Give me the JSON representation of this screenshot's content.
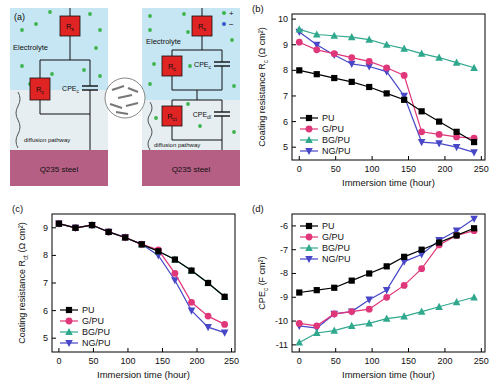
{
  "diagram": {
    "label": "(a)",
    "left": {
      "electrolyte": "Electrolyte",
      "pathway": "diffusion pathway",
      "substrate": "Q235 steel",
      "Rs": [
        "R",
        "s"
      ],
      "Rc": [
        "R",
        "c"
      ],
      "CPEc": [
        "CPE",
        "c"
      ]
    },
    "right": {
      "electrolyte": "Electrolyte",
      "pathway": "diffusion pathway",
      "substrate": "Q235 steel",
      "Rs": [
        "R",
        "s"
      ],
      "Rc": [
        "R",
        "c"
      ],
      "CPEc": [
        "CPE",
        "c"
      ],
      "Rct": [
        "R",
        "ct"
      ],
      "CPEdl": [
        "CPE",
        "dl"
      ],
      "ions": [
        "+",
        "−"
      ]
    }
  },
  "chart_data": [
    {
      "type": "line",
      "title": "(b)",
      "xlabel": "Immersion time (hour)",
      "ylabel": [
        "Coating resistance R",
        "c",
        " (Ω cm²)"
      ],
      "x": [
        0,
        24,
        48,
        72,
        96,
        120,
        144,
        168,
        192,
        216,
        240
      ],
      "xlim": [
        -10,
        255
      ],
      "xticks": [
        0,
        50,
        100,
        150,
        200,
        250
      ],
      "ylim": [
        4.5,
        10.2
      ],
      "yticks": [
        5,
        6,
        7,
        8,
        9,
        10
      ],
      "grid": false,
      "legend": "lower left",
      "series": [
        {
          "name": "PU",
          "color": "#000000",
          "marker": "square",
          "values": [
            8.0,
            7.85,
            7.7,
            7.55,
            7.35,
            7.1,
            6.85,
            6.4,
            6.0,
            5.6,
            5.2
          ]
        },
        {
          "name": "G/PU",
          "color": "#e0367a",
          "marker": "circle",
          "values": [
            9.1,
            8.8,
            8.65,
            8.5,
            8.35,
            8.1,
            7.8,
            5.6,
            5.5,
            5.4,
            5.35
          ]
        },
        {
          "name": "BG/PU",
          "color": "#2fa88e",
          "marker": "triangle-up",
          "values": [
            9.6,
            9.4,
            9.35,
            9.3,
            9.2,
            9.0,
            8.85,
            8.65,
            8.5,
            8.3,
            8.1
          ]
        },
        {
          "name": "NG/PU",
          "color": "#4747c8",
          "marker": "triangle-down",
          "values": [
            9.5,
            9.0,
            8.6,
            8.25,
            8.15,
            7.95,
            7.0,
            5.2,
            5.15,
            5.0,
            4.8
          ]
        }
      ]
    },
    {
      "type": "line",
      "title": "(c)",
      "xlabel": "Immersion time (hour)",
      "ylabel": [
        "Coating resistance R",
        "ct",
        " (Ω cm²)"
      ],
      "x": [
        0,
        24,
        48,
        72,
        96,
        120,
        144,
        168,
        192,
        216,
        240
      ],
      "xlim": [
        -10,
        255
      ],
      "xticks": [
        0,
        50,
        100,
        150,
        200,
        250
      ],
      "ylim": [
        4.5,
        9.5
      ],
      "yticks": [
        5,
        6,
        7,
        8,
        9
      ],
      "grid": false,
      "legend": "lower left",
      "series": [
        {
          "name": "PU",
          "color": "#000000",
          "marker": "square",
          "values": [
            9.15,
            9.0,
            9.1,
            8.85,
            8.65,
            8.4,
            8.15,
            7.85,
            7.45,
            7.0,
            6.5
          ]
        },
        {
          "name": "G/PU",
          "color": "#e0367a",
          "marker": "circle",
          "values": [
            9.15,
            9.0,
            9.1,
            8.85,
            8.65,
            8.4,
            8.2,
            7.35,
            6.3,
            5.8,
            5.5
          ]
        },
        {
          "name": "BG/PU",
          "color": "#2fa88e",
          "marker": "triangle-up",
          "values": [
            9.15,
            9.0,
            9.1,
            8.85,
            8.65,
            8.4,
            8.15,
            7.85,
            7.45,
            7.0,
            6.5
          ]
        },
        {
          "name": "NG/PU",
          "color": "#4747c8",
          "marker": "triangle-down",
          "values": [
            9.15,
            9.0,
            9.1,
            8.85,
            8.65,
            8.4,
            8.0,
            7.1,
            6.0,
            5.4,
            5.2
          ]
        }
      ]
    },
    {
      "type": "line",
      "title": "(d)",
      "xlabel": "Immersion time (hour)",
      "ylabel": [
        "CPE",
        "c",
        " (F cm²)"
      ],
      "x": [
        0,
        24,
        48,
        72,
        96,
        120,
        144,
        168,
        192,
        216,
        240
      ],
      "xlim": [
        -10,
        255
      ],
      "xticks": [
        0,
        50,
        100,
        150,
        200,
        250
      ],
      "ylim": [
        -11.3,
        -5.5
      ],
      "yticks": [
        -11,
        -10,
        -9,
        -8,
        -7,
        -6
      ],
      "grid": false,
      "legend": "upper left",
      "series": [
        {
          "name": "PU",
          "color": "#000000",
          "marker": "square",
          "values": [
            -8.8,
            -8.7,
            -8.6,
            -8.3,
            -8.0,
            -7.7,
            -7.3,
            -7.0,
            -6.7,
            -6.4,
            -6.1
          ]
        },
        {
          "name": "G/PU",
          "color": "#e0367a",
          "marker": "circle",
          "values": [
            -10.1,
            -10.2,
            -9.7,
            -9.6,
            -9.5,
            -9.0,
            -8.5,
            -7.8,
            -6.8,
            -6.4,
            -6.2
          ]
        },
        {
          "name": "BG/PU",
          "color": "#2fa88e",
          "marker": "triangle-up",
          "values": [
            -10.9,
            -10.5,
            -10.4,
            -10.2,
            -10.1,
            -9.9,
            -9.8,
            -9.6,
            -9.4,
            -9.2,
            -9.0
          ]
        },
        {
          "name": "NG/PU",
          "color": "#4747c8",
          "marker": "triangle-down",
          "values": [
            -10.2,
            -10.3,
            -9.7,
            -9.6,
            -9.1,
            -8.7,
            -7.5,
            -7.2,
            -6.6,
            -6.2,
            -5.7
          ]
        }
      ]
    }
  ]
}
